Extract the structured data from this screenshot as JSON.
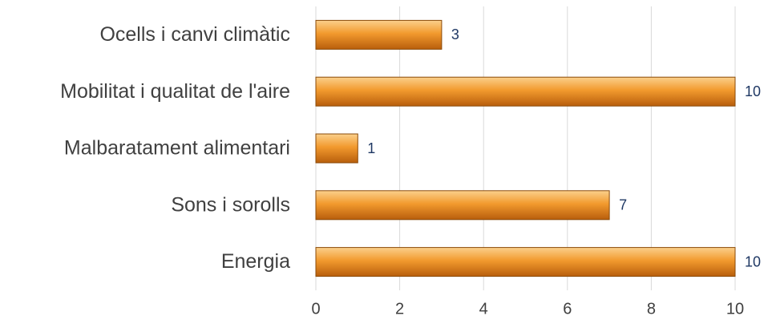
{
  "chart_data": {
    "type": "bar",
    "orientation": "horizontal",
    "categories": [
      "Ocells i canvi climàtic",
      "Mobilitat i qualitat de l'aire",
      "Malbaratament alimentari",
      "Sons i sorolls",
      "Energia"
    ],
    "values": [
      3,
      10,
      1,
      7,
      10
    ],
    "color": "#f29a2e",
    "xlim": [
      0,
      10
    ],
    "xticks": [
      0,
      2,
      4,
      6,
      8,
      10
    ],
    "grid": true
  }
}
